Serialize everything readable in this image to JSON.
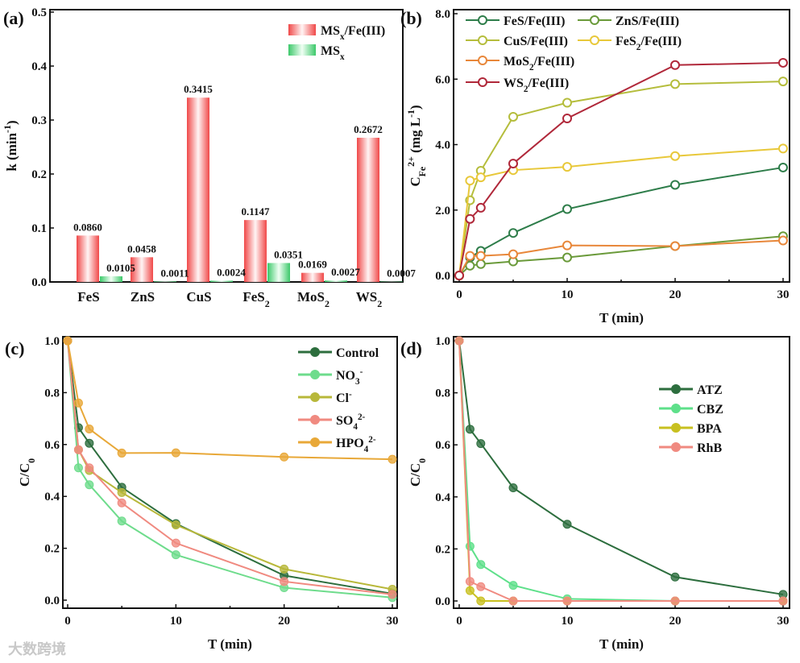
{
  "watermark": "大数跨境",
  "chart_data": [
    {
      "id": "a",
      "panel_label": "(a)",
      "type": "bar",
      "title": "",
      "xlabel": "",
      "ylabel": [
        {
          "t": "k (min"
        },
        {
          "t": "-1",
          "sup": true
        },
        {
          "t": ")"
        }
      ],
      "ylim": [
        0,
        0.5
      ],
      "yticks": [
        "0.0",
        "0.1",
        "0.2",
        "0.3",
        "0.4",
        "0.5"
      ],
      "categories": [
        [
          {
            "t": "FeS"
          }
        ],
        [
          {
            "t": "ZnS"
          }
        ],
        [
          {
            "t": "CuS"
          }
        ],
        [
          {
            "t": "FeS"
          },
          {
            "t": "2",
            "sub": true
          }
        ],
        [
          {
            "t": "MoS"
          },
          {
            "t": "2",
            "sub": true
          }
        ],
        [
          {
            "t": "WS"
          },
          {
            "t": "2",
            "sub": true
          }
        ]
      ],
      "legend_position": "top-right",
      "series": [
        {
          "name": [
            {
              "t": "MS"
            },
            {
              "t": "x",
              "sub": true
            },
            {
              "t": "/Fe(III)"
            }
          ],
          "color": "#f04848",
          "values": [
            0.086,
            0.0458,
            0.3415,
            0.1147,
            0.0169,
            0.2672
          ],
          "labels": [
            "0.0860",
            "0.0458",
            "0.3415",
            "0.1147",
            "0.0169",
            "0.2672"
          ]
        },
        {
          "name": [
            {
              "t": "MS"
            },
            {
              "t": "x",
              "sub": true
            }
          ],
          "color": "#3cc86a",
          "values": [
            0.0105,
            0.0011,
            0.0024,
            0.0351,
            0.0027,
            0.0007
          ],
          "labels": [
            "0.0105",
            "0.0011",
            "0.0024",
            "0.0351",
            "0.0027",
            "0.0007"
          ]
        }
      ]
    },
    {
      "id": "b",
      "panel_label": "(b)",
      "type": "line",
      "xlabel": [
        {
          "t": "T (min)"
        }
      ],
      "ylabel": [
        {
          "t": "C"
        },
        {
          "t": "Fe",
          "sub": true
        },
        {
          "t": "2+",
          "sup": true
        },
        {
          "t": " (mg L"
        },
        {
          "t": "-1",
          "sup": true
        },
        {
          "t": ")"
        }
      ],
      "xlim": [
        0,
        30
      ],
      "ylim": [
        0,
        8
      ],
      "xticks": [
        "0",
        "10",
        "20",
        "30"
      ],
      "yticks": [
        "0.0",
        "2.0",
        "4.0",
        "6.0",
        "8.0"
      ],
      "marker": "open-circle",
      "legend_position": "top-left",
      "x": [
        0,
        1,
        2,
        5,
        10,
        20,
        30
      ],
      "series": [
        {
          "name": [
            {
              "t": "FeS/Fe(III)"
            }
          ],
          "color": "#2e7d4a",
          "values": [
            0,
            0.55,
            0.75,
            1.3,
            2.03,
            2.77,
            3.3
          ]
        },
        {
          "name": [
            {
              "t": "ZnS/Fe(III)"
            }
          ],
          "color": "#6a9a3a",
          "values": [
            0,
            0.3,
            0.35,
            0.43,
            0.55,
            0.9,
            1.2
          ]
        },
        {
          "name": [
            {
              "t": "CuS/Fe(III)"
            }
          ],
          "color": "#b5bd3c",
          "values": [
            0,
            2.3,
            3.2,
            4.85,
            5.28,
            5.85,
            5.93
          ]
        },
        {
          "name": [
            {
              "t": "FeS"
            },
            {
              "t": "2",
              "sub": true
            },
            {
              "t": "/Fe(III)"
            }
          ],
          "color": "#e8c83a",
          "values": [
            0,
            2.9,
            3.0,
            3.22,
            3.32,
            3.65,
            3.88
          ]
        },
        {
          "name": [
            {
              "t": "MoS"
            },
            {
              "t": "2",
              "sub": true
            },
            {
              "t": "/Fe(III)"
            }
          ],
          "color": "#e8873a",
          "values": [
            0,
            0.6,
            0.6,
            0.65,
            0.92,
            0.9,
            1.07
          ]
        },
        {
          "name": [
            {
              "t": "WS"
            },
            {
              "t": "2",
              "sub": true
            },
            {
              "t": "/Fe(III)"
            }
          ],
          "color": "#b0283a",
          "values": [
            0,
            1.73,
            2.07,
            3.42,
            4.8,
            6.43,
            6.5
          ]
        }
      ]
    },
    {
      "id": "c",
      "panel_label": "(c)",
      "type": "line",
      "xlabel": [
        {
          "t": "T (min)"
        }
      ],
      "ylabel": [
        {
          "t": "C/C"
        },
        {
          "t": "0",
          "sub": true
        }
      ],
      "xlim": [
        0,
        30
      ],
      "ylim": [
        0,
        1
      ],
      "xticks": [
        "0",
        "10",
        "20",
        "30"
      ],
      "yticks": [
        "0.0",
        "0.2",
        "0.4",
        "0.6",
        "0.8",
        "1.0"
      ],
      "marker": "filled-circle",
      "legend_position": "top-right",
      "x": [
        0,
        1,
        2,
        5,
        10,
        20,
        30
      ],
      "series": [
        {
          "name": [
            {
              "t": "Control"
            }
          ],
          "color": "#2d6e3e",
          "values": [
            1,
            0.665,
            0.605,
            0.435,
            0.295,
            0.095,
            0.025
          ]
        },
        {
          "name": [
            {
              "t": "NO"
            },
            {
              "t": "3",
              "sub": true
            },
            {
              "t": "-",
              "sup": true
            }
          ],
          "color": "#6edc8c",
          "values": [
            1,
            0.51,
            0.445,
            0.305,
            0.175,
            0.048,
            0.01
          ]
        },
        {
          "name": [
            {
              "t": "Cl"
            },
            {
              "t": "-",
              "sup": true
            }
          ],
          "color": "#b8b83a",
          "values": [
            1,
            0.58,
            0.5,
            0.415,
            0.29,
            0.12,
            0.042
          ]
        },
        {
          "name": [
            {
              "t": "SO"
            },
            {
              "t": "4",
              "sub": true
            },
            {
              "t": "2-",
              "sup": true
            }
          ],
          "color": "#f08a80",
          "values": [
            1,
            0.58,
            0.51,
            0.375,
            0.22,
            0.072,
            0.022
          ]
        },
        {
          "name": [
            {
              "t": "HPO"
            },
            {
              "t": "4",
              "sub": true
            },
            {
              "t": "2-",
              "sup": true
            }
          ],
          "color": "#e8a838",
          "values": [
            1,
            0.76,
            0.66,
            0.567,
            0.568,
            0.552,
            0.543
          ]
        }
      ]
    },
    {
      "id": "d",
      "panel_label": "(d)",
      "type": "line",
      "xlabel": [
        {
          "t": "T (min)"
        }
      ],
      "ylabel": [
        {
          "t": "C/C"
        },
        {
          "t": "0",
          "sub": true
        }
      ],
      "xlim": [
        0,
        30
      ],
      "ylim": [
        0,
        1
      ],
      "xticks": [
        "0",
        "10",
        "20",
        "30"
      ],
      "yticks": [
        "0.0",
        "0.2",
        "0.4",
        "0.6",
        "0.8",
        "1.0"
      ],
      "marker": "filled-circle",
      "legend_position": "center-right",
      "x": [
        0,
        1,
        2,
        5,
        10,
        20,
        30
      ],
      "series": [
        {
          "name": [
            {
              "t": "ATZ"
            }
          ],
          "color": "#2d6e3e",
          "values": [
            1,
            0.66,
            0.605,
            0.435,
            0.295,
            0.092,
            0.025
          ]
        },
        {
          "name": [
            {
              "t": "CBZ"
            }
          ],
          "color": "#5ee08a",
          "values": [
            1,
            0.21,
            0.14,
            0.06,
            0.008,
            0,
            0
          ]
        },
        {
          "name": [
            {
              "t": "BPA"
            }
          ],
          "color": "#c8c020",
          "values": [
            1,
            0.04,
            0,
            0,
            0,
            0,
            0
          ]
        },
        {
          "name": [
            {
              "t": "RhB"
            }
          ],
          "color": "#f08a80",
          "values": [
            1,
            0.075,
            0.055,
            0,
            0,
            0,
            0
          ]
        }
      ]
    }
  ]
}
